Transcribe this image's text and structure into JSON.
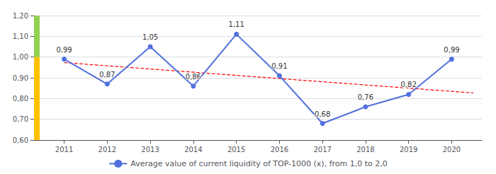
{
  "chart_data": {
    "type": "line",
    "x": [
      2011,
      2012,
      2013,
      2014,
      2015,
      2016,
      2017,
      2018,
      2019,
      2020
    ],
    "series": [
      {
        "name": "Average value of current liquidity of TOP-1000 (x), from 1,0 to 2,0",
        "values": [
          0.99,
          0.87,
          1.05,
          0.86,
          1.11,
          0.91,
          0.68,
          0.76,
          0.82,
          0.99
        ],
        "value_labels": [
          "0,99",
          "0,87",
          "1,05",
          "0,86",
          "1,11",
          "0,91",
          "0,68",
          "0,76",
          "0,82",
          "0,99"
        ],
        "marker": "circle"
      }
    ],
    "trend": {
      "x": [
        2011,
        2020.5
      ],
      "values": [
        0.9732727,
        0.8270303
      ],
      "color": "#FF0000",
      "line_style": "dashed"
    },
    "bands": [
      {
        "from": 1.0,
        "to": 1.2,
        "color": "#92D050"
      },
      {
        "from": 0.6,
        "to": 1.0,
        "color": "#FFC000"
      }
    ],
    "xlim": [
      2010.3,
      2020.7
    ],
    "xticks": [
      2011,
      2012,
      2013,
      2014,
      2015,
      2016,
      2017,
      2018,
      2019,
      2020
    ],
    "ylim": [
      0.6,
      1.2
    ],
    "yticks": [
      {
        "value": 0.6,
        "label": "0,60"
      },
      {
        "value": 0.7,
        "label": "0,70"
      },
      {
        "value": 0.8,
        "label": "0,80"
      },
      {
        "value": 0.9,
        "label": "0,90"
      },
      {
        "value": 1.0,
        "label": "1,00"
      },
      {
        "value": 1.1,
        "label": "1,10"
      },
      {
        "value": 1.2,
        "label": "1,20"
      }
    ],
    "grid": true,
    "data_labels": true,
    "legend": "bottom"
  }
}
